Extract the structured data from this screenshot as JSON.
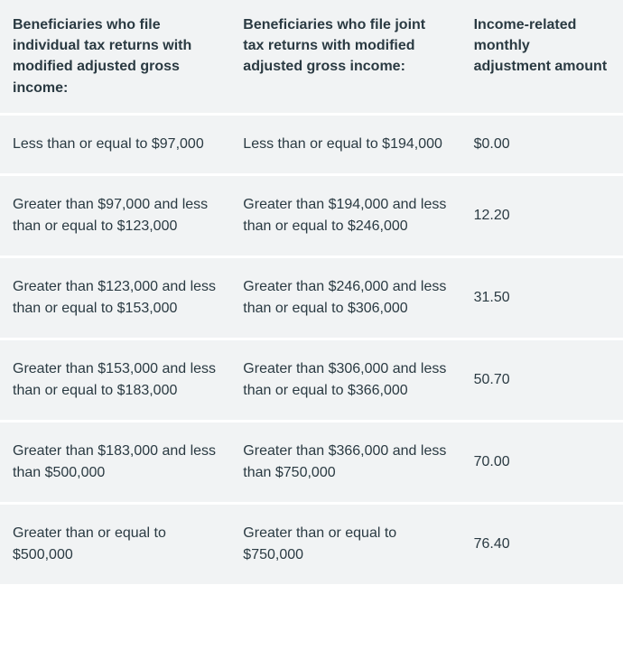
{
  "table": {
    "background_color": "#f1f3f4",
    "row_separator_color": "#ffffff",
    "text_color": "#2a3a42",
    "header_fontsize": 16,
    "cell_fontsize": 16,
    "columns": [
      "Beneficiaries who file individual tax returns with modified adjusted gross income:",
      "Beneficiaries who file joint tax returns with modified adjusted gross income:",
      "Income-related monthly adjustment amount"
    ],
    "column_widths_pct": [
      37,
      37,
      26
    ],
    "rows": [
      [
        "Less than or equal to $97,000",
        "Less than or equal to $194,000",
        "$0.00"
      ],
      [
        "Greater than $97,000 and less than or equal to $123,000",
        "Greater than $194,000 and less than or equal to $246,000",
        "12.20"
      ],
      [
        "Greater than $123,000 and less than or equal to $153,000",
        "Greater than $246,000 and less than or equal to $306,000",
        "31.50"
      ],
      [
        "Greater than $153,000 and less than or equal to $183,000",
        "Greater than $306,000 and less than or equal to $366,000",
        "50.70"
      ],
      [
        "Greater than $183,000 and less than $500,000",
        "Greater than $366,000 and less than $750,000",
        "70.00"
      ],
      [
        "Greater than or equal to $500,000",
        "Greater than or equal to $750,000",
        "76.40"
      ]
    ]
  }
}
